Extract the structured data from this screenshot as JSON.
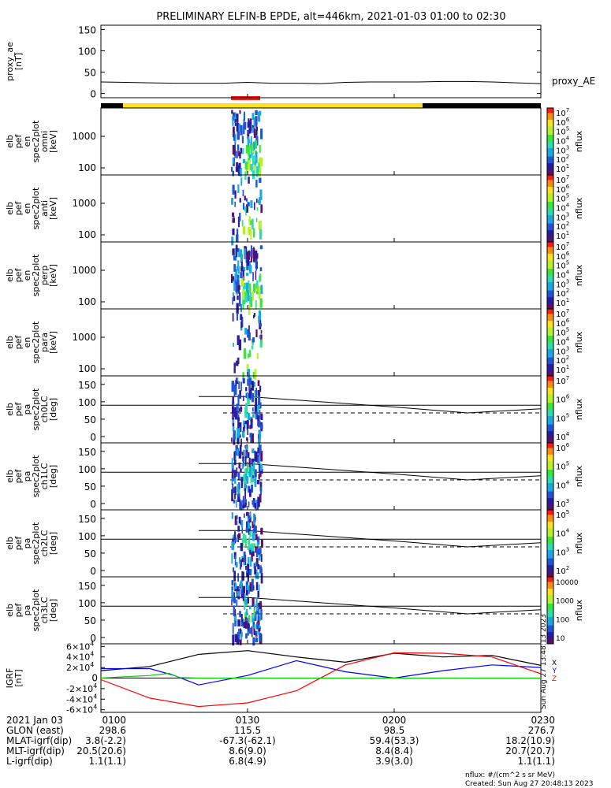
{
  "title": "PRELIMINARY ELFIN-B EPDE, alt=446km, 2021-01-03 01:00 to 02:30",
  "chart_data": [
    {
      "type": "line",
      "panel": "proxy_ae",
      "ylabel": [
        "proxy_ae",
        "[nT]"
      ],
      "yticks": [
        "150",
        "100",
        "50",
        "0"
      ],
      "ylim": [
        -10,
        160
      ],
      "series": [
        {
          "name": "proxy_AE",
          "x": [
            0,
            5,
            10,
            15,
            20,
            25,
            30,
            35,
            40,
            45,
            50,
            55,
            60,
            65,
            70,
            75,
            80,
            85,
            90
          ],
          "values": [
            27,
            26,
            25,
            24,
            24,
            24,
            26,
            24,
            24,
            23,
            26,
            27,
            27,
            27,
            28,
            28,
            27,
            25,
            23
          ]
        }
      ]
    },
    {
      "type": "heatmap",
      "panel": "elb_pef_en_spec2plot_omni",
      "ylabel": [
        "elb",
        "pef",
        "en",
        "spec2plot",
        "omni",
        "[keV]"
      ],
      "yticks": [
        "1000",
        "100"
      ],
      "colorbar": {
        "label": "nflux",
        "ticks": [
          "10^7",
          "10^6",
          "10^5",
          "10^4",
          "10^3",
          "10^2",
          "10^1"
        ]
      }
    },
    {
      "type": "heatmap",
      "panel": "elb_pef_en_spec2plot_anti",
      "ylabel": [
        "elb",
        "pef",
        "en",
        "spec2plot",
        "anti",
        "[keV]"
      ],
      "yticks": [
        "1000",
        "100"
      ],
      "colorbar": {
        "label": "nflux",
        "ticks": [
          "10^7",
          "10^6",
          "10^5",
          "10^4",
          "10^3",
          "10^2",
          "10^1"
        ]
      }
    },
    {
      "type": "heatmap",
      "panel": "elb_pef_en_spec2plot_perp",
      "ylabel": [
        "elb",
        "pef",
        "en",
        "spec2plot",
        "perp",
        "[keV]"
      ],
      "yticks": [
        "1000",
        "100"
      ],
      "colorbar": {
        "label": "nflux",
        "ticks": [
          "10^7",
          "10^6",
          "10^5",
          "10^4",
          "10^3",
          "10^2",
          "10^1"
        ]
      }
    },
    {
      "type": "heatmap",
      "panel": "elb_pef_en_spec2plot_para",
      "ylabel": [
        "elb",
        "pef",
        "en",
        "spec2plot",
        "para",
        "[keV]"
      ],
      "yticks": [
        "1000",
        "100"
      ],
      "colorbar": {
        "label": "nflux",
        "ticks": [
          "10^7",
          "10^6",
          "10^5",
          "10^4",
          "10^3",
          "10^2",
          "10^1"
        ]
      }
    },
    {
      "type": "heatmap",
      "panel": "elb_pef_pa_spec2plot_ch0LC",
      "ylabel": [
        "elb",
        "pef",
        "pa",
        "spec2plot",
        "ch0LC",
        "[deg]"
      ],
      "yticks": [
        "150",
        "100",
        "50",
        "0"
      ],
      "colorbar": {
        "label": "nflux",
        "ticks": [
          "10^7",
          "10^6",
          "10^5",
          "10^4"
        ]
      }
    },
    {
      "type": "heatmap",
      "panel": "elb_pef_pa_spec2plot_ch1LC",
      "ylabel": [
        "elb",
        "pef",
        "pa",
        "spec2plot",
        "ch1LC",
        "[deg]"
      ],
      "yticks": [
        "150",
        "100",
        "50",
        "0"
      ],
      "colorbar": {
        "label": "nflux",
        "ticks": [
          "10^6",
          "10^5",
          "10^4",
          "10^3"
        ]
      }
    },
    {
      "type": "heatmap",
      "panel": "elb_pef_pa_spec2plot_ch2LC",
      "ylabel": [
        "elb",
        "pef",
        "pa",
        "spec2plot",
        "ch2LC",
        "[deg]"
      ],
      "yticks": [
        "150",
        "100",
        "50",
        "0"
      ],
      "colorbar": {
        "label": "nflux",
        "ticks": [
          "10^5",
          "10^4",
          "10^3",
          "10^2"
        ]
      }
    },
    {
      "type": "heatmap",
      "panel": "elb_pef_pa_spec2plot_ch3LC",
      "ylabel": [
        "elb",
        "pef",
        "pa",
        "spec2plot",
        "ch3LC",
        "[deg]"
      ],
      "yticks": [
        "150",
        "100",
        "50",
        "0"
      ],
      "colorbar": {
        "label": "nflux",
        "ticks": [
          "10000",
          "1000",
          "100",
          "10"
        ]
      }
    },
    {
      "type": "line",
      "panel": "IGRF",
      "ylabel": [
        "IGRF",
        "[nT]"
      ],
      "yticks": [
        "6×10^4",
        "4×10^4",
        "2×10^4",
        "0",
        "-2×10^4",
        "-4×10^4",
        "-6×10^4"
      ],
      "ylim": [
        -65000,
        65000
      ],
      "legend": [
        "X",
        "Y",
        "Z"
      ],
      "series": [
        {
          "color": "#000000",
          "x": [
            0,
            10,
            20,
            30,
            40,
            50,
            60,
            70,
            80,
            90
          ],
          "values": [
            14000,
            22000,
            45000,
            52000,
            40000,
            30000,
            47000,
            40000,
            43000,
            24000
          ]
        },
        {
          "color": "#0000ff",
          "x": [
            0,
            10,
            15,
            20,
            30,
            40,
            50,
            60,
            70,
            80,
            90
          ],
          "values": [
            18000,
            18000,
            5000,
            -13000,
            5000,
            33000,
            12000,
            0,
            14000,
            25000,
            20000
          ]
        },
        {
          "color": "#ff0000",
          "x": [
            0,
            10,
            20,
            30,
            40,
            50,
            60,
            70,
            80,
            90
          ],
          "values": [
            -3000,
            -38000,
            -54000,
            -47000,
            -24000,
            25000,
            48000,
            47000,
            40000,
            8000
          ]
        },
        {
          "color": "#00cc00",
          "x": [
            0,
            10,
            14,
            16,
            20,
            30,
            40,
            50,
            60,
            70,
            80,
            90
          ],
          "values": [
            0,
            5000,
            9000,
            1000,
            0,
            0,
            0,
            0,
            0,
            0,
            0,
            0
          ]
        }
      ]
    }
  ],
  "xaxis": {
    "ticks": [
      {
        "label": "0100",
        "glon": "298.6",
        "mlat": "3.8(-2.2)",
        "mlt": "20.5(20.6)",
        "lshell": "1.1(1.1)"
      },
      {
        "label": "0130",
        "glon": "115.5",
        "mlat": "-67.3(-62.1)",
        "mlt": "8.6(9.0)",
        "lshell": "6.8(4.9)"
      },
      {
        "label": "0200",
        "glon": "98.5",
        "mlat": "59.4(53.3)",
        "mlt": "8.4(8.4)",
        "lshell": "3.9(3.0)"
      },
      {
        "label": "0230",
        "glon": "276.7",
        "mlat": "18.2(10.9)",
        "mlt": "20.7(20.7)",
        "lshell": "1.1(1.1)"
      }
    ],
    "rows": [
      "2021 Jan 03",
      "GLON (east)",
      "MLAT-igrf(dip)",
      "MLT-igrf(dip)",
      "L-igrf(dip)"
    ]
  },
  "footer": {
    "units": "nflux: #/(cm^2 s sr MeV)",
    "created": "Created: Sun Aug 27 20:48:13 2023",
    "side_stamp": "Sun Aug 27 13:48:13 2023"
  }
}
